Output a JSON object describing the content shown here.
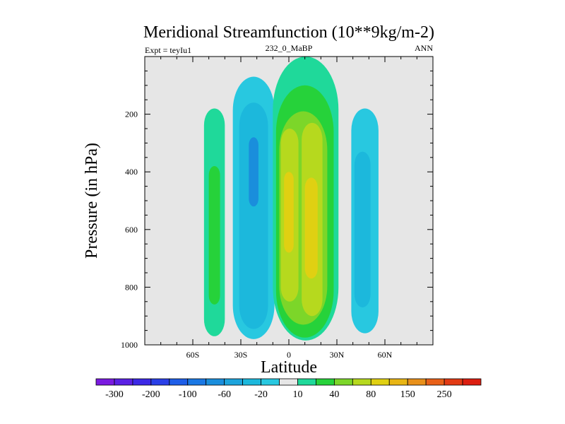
{
  "chart_data": {
    "type": "heatmap",
    "title": "Meridional Streamfunction (10**9kg/m-2)",
    "left_string": "Expt = teyIu1",
    "center_string": "232_0_MaBP",
    "right_string": "ANN",
    "xlabel": "Latitude",
    "ylabel": "Pressure (in hPa)",
    "xlim": [
      -90,
      90
    ],
    "ylim": [
      1000,
      0
    ],
    "x_ticks": [
      {
        "value": -60,
        "label": "60S"
      },
      {
        "value": -30,
        "label": "30S"
      },
      {
        "value": 0,
        "label": "0"
      },
      {
        "value": 30,
        "label": "30N"
      },
      {
        "value": 60,
        "label": "60N"
      }
    ],
    "y_ticks": [
      {
        "value": 200,
        "label": "200"
      },
      {
        "value": 400,
        "label": "400"
      },
      {
        "value": 600,
        "label": "600"
      },
      {
        "value": 800,
        "label": "800"
      },
      {
        "value": 1000,
        "label": "1000"
      }
    ],
    "background_color": "#e6e6e6",
    "contour_levels": [
      -300,
      -250,
      -200,
      -150,
      -100,
      -80,
      -60,
      -40,
      -20,
      -10,
      10,
      20,
      40,
      60,
      80,
      100,
      150,
      200,
      250,
      300
    ],
    "colorbar": {
      "colors": [
        "#7a1ae0",
        "#5a20e4",
        "#3c28e6",
        "#2a40e8",
        "#1e5ee8",
        "#1a78e4",
        "#1a8edc",
        "#1ca4dc",
        "#1cb8dc",
        "#28c8e0",
        "#e6e6e6",
        "#1fd99a",
        "#26d23a",
        "#7cd629",
        "#b6d91e",
        "#e0d012",
        "#e8b514",
        "#e8901a",
        "#e86018",
        "#e23a14",
        "#dc1e10"
      ],
      "labels": [
        "-300",
        "-200",
        "-100",
        "-60",
        "-20",
        "10",
        "40",
        "80",
        "150",
        "250"
      ]
    },
    "cells": [
      {
        "name": "cell-far-south-outer",
        "level": 10,
        "color": "#1fd99a",
        "lat": [
          -53,
          -40
        ],
        "p": [
          180,
          970
        ]
      },
      {
        "name": "cell-far-south-inner",
        "level": 20,
        "color": "#26d23a",
        "lat": [
          -50,
          -43
        ],
        "p": [
          380,
          860
        ]
      },
      {
        "name": "cell-south-outer",
        "level": -10,
        "color": "#28c8e0",
        "lat": [
          -35,
          -9
        ],
        "p": [
          70,
          980
        ]
      },
      {
        "name": "cell-south-mid",
        "level": -20,
        "color": "#1cb8dc",
        "lat": [
          -31,
          -13
        ],
        "p": [
          160,
          945
        ]
      },
      {
        "name": "cell-south-inner",
        "level": -40,
        "color": "#1a8edc",
        "lat": [
          -25,
          -19
        ],
        "p": [
          280,
          520
        ]
      },
      {
        "name": "cell-tropics-outer",
        "level": 10,
        "color": "#1fd99a",
        "lat": [
          -10,
          31
        ],
        "p": [
          0,
          985
        ]
      },
      {
        "name": "cell-tropics-20",
        "level": 20,
        "color": "#26d23a",
        "lat": [
          -8,
          28
        ],
        "p": [
          100,
          975
        ]
      },
      {
        "name": "cell-tropics-40",
        "level": 40,
        "color": "#7cd629",
        "lat": [
          -6,
          24
        ],
        "p": [
          190,
          930
        ]
      },
      {
        "name": "cell-south-hadley-60",
        "level": 60,
        "color": "#b6d91e",
        "lat": [
          -5,
          6
        ],
        "p": [
          250,
          850
        ]
      },
      {
        "name": "cell-south-hadley-80",
        "level": 80,
        "color": "#e0d012",
        "lat": [
          -3,
          3
        ],
        "p": [
          400,
          680
        ]
      },
      {
        "name": "cell-north-hadley-60",
        "level": 60,
        "color": "#b6d91e",
        "lat": [
          8,
          21
        ],
        "p": [
          230,
          900
        ]
      },
      {
        "name": "cell-north-hadley-80",
        "level": 80,
        "color": "#e0d012",
        "lat": [
          10,
          18
        ],
        "p": [
          420,
          770
        ]
      },
      {
        "name": "cell-north-outer",
        "level": -10,
        "color": "#28c8e0",
        "lat": [
          39,
          56
        ],
        "p": [
          180,
          960
        ]
      },
      {
        "name": "cell-north-inner",
        "level": -20,
        "color": "#1cb8dc",
        "lat": [
          41,
          51
        ],
        "p": [
          330,
          870
        ]
      }
    ]
  }
}
